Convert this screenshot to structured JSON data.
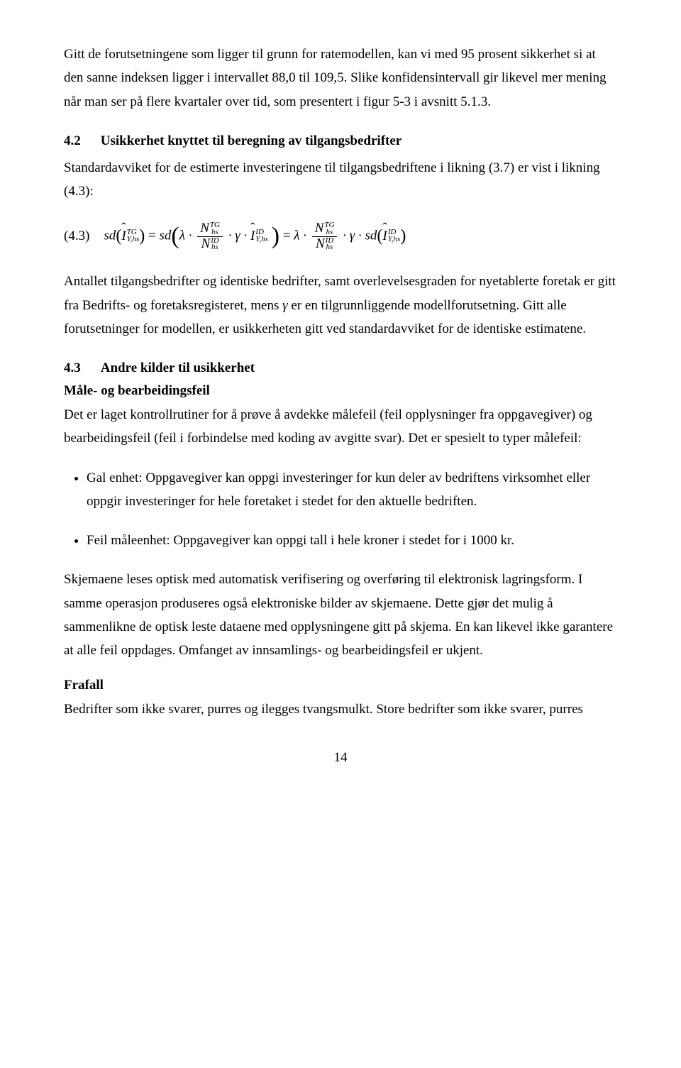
{
  "para1": "Gitt de forutsetningene som ligger til grunn for ratemodellen, kan vi med 95 prosent sikkerhet si at den sanne indeksen ligger i intervallet 88,0 til 109,5. Slike konfidensintervall gir likevel mer mening når man ser på flere kvartaler over tid, som presentert i figur 5-3 i avsnitt 5.1.3.",
  "h42_num": "4.2",
  "h42_title": "Usikkerhet knyttet til beregning av tilgangsbedrifter",
  "para2": "Standardavviket for de estimerte investeringene til tilgangsbedriftene i likning (3.7) er vist i likning (4.3):",
  "formula_num": "(4.3)",
  "para3_a": "Antallet tilgangsbedrifter og identiske bedrifter, samt overlevelsesgraden for nyetablerte foretak er gitt fra Bedrifts- og foretaksregisteret, mens ",
  "para3_gamma": "γ",
  "para3_b": " er en tilgrunnliggende modellforutsetning. Gitt alle forutsetninger for modellen, er usikkerheten gitt ved standardavviket for de identiske estimatene.",
  "h43_num": "4.3",
  "h43_title": "Andre kilder til usikkerhet",
  "sub1": "Måle- og bearbeidingsfeil",
  "para4": "Det er laget kontrollrutiner for å prøve å avdekke målefeil (feil opplysninger fra oppgavegiver) og bearbeidingsfeil (feil i forbindelse med koding av avgitte svar). Det er spesielt to typer målefeil:",
  "bullet1": "Gal enhet: Oppgavegiver kan oppgi investeringer for kun deler av bedriftens virksomhet eller oppgir investeringer for hele foretaket i stedet for den aktuelle bedriften.",
  "bullet2": "Feil måleenhet: Oppgavegiver kan oppgi tall i hele kroner i stedet for i 1000 kr.",
  "para5": "Skjemaene leses optisk med automatisk verifisering og overføring til elektronisk lagringsform. I samme operasjon produseres også elektroniske bilder av skjemaene. Dette gjør det mulig å sammenlikne de optisk leste dataene med opplysningene gitt på skjema. En kan likevel ikke garantere at alle feil oppdages. Omfanget av innsamlings- og bearbeidingsfeil er ukjent.",
  "sub2": "Frafall",
  "para6": "Bedrifter som ikke svarer, purres og ilegges tvangsmulkt. Store bedrifter som ikke svarer, purres",
  "page_number": "14"
}
